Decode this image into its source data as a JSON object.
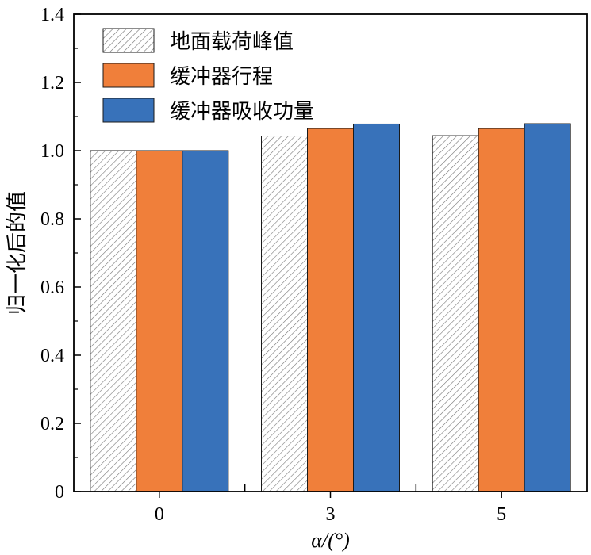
{
  "chart_data": {
    "type": "bar",
    "title": "",
    "xlabel": "α/(°)",
    "ylabel": "归一化后的值",
    "categories": [
      "0",
      "3",
      "5"
    ],
    "ylim": [
      0,
      1.4
    ],
    "yticks": [
      0,
      0.2,
      0.4,
      0.6,
      0.8,
      1.0,
      1.2,
      1.4
    ],
    "ytick_labels": [
      "0",
      "0.2",
      "0.4",
      "0.6",
      "0.8",
      "1.0",
      "1.2",
      "1.4"
    ],
    "grid": false,
    "legend_position": "top-left",
    "series": [
      {
        "name": "地面载荷峰值",
        "values": [
          1.0,
          1.043,
          1.044
        ],
        "color": "#ffffff",
        "pattern": "diagonal-hatch"
      },
      {
        "name": "缓冲器行程",
        "values": [
          1.0,
          1.065,
          1.065
        ],
        "color": "#F07F3A"
      },
      {
        "name": "缓冲器吸收功量",
        "values": [
          1.0,
          1.078,
          1.079
        ],
        "color": "#3872BA"
      }
    ]
  }
}
